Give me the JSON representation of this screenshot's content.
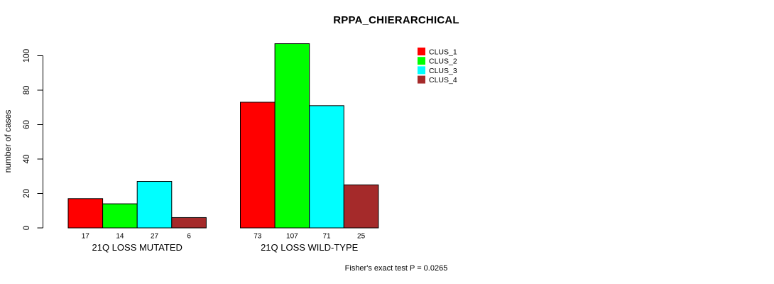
{
  "chart_data": {
    "type": "bar",
    "title": "RPPA_CHIERARCHICAL",
    "xlabel": "",
    "ylabel": "number of cases",
    "categories": [
      "21Q LOSS MUTATED",
      "21Q LOSS WILD-TYPE"
    ],
    "series": [
      {
        "name": "CLUS_1",
        "color": "#ff0000",
        "values": [
          17,
          73
        ]
      },
      {
        "name": "CLUS_2",
        "color": "#00ff00",
        "values": [
          14,
          107
        ]
      },
      {
        "name": "CLUS_3",
        "color": "#00ffff",
        "values": [
          27,
          71
        ]
      },
      {
        "name": "CLUS_4",
        "color": "#a52a2a",
        "values": [
          6,
          25
        ]
      }
    ],
    "bar_value_labels": [
      [
        "17",
        "14",
        "27",
        "6"
      ],
      [
        "73",
        "107",
        "71",
        "25"
      ]
    ],
    "ylim": [
      0,
      100
    ],
    "yticks": [
      0,
      20,
      40,
      60,
      80,
      100
    ],
    "grid": false,
    "legend_position": "top-right",
    "legend_entries": [
      "CLUS_1",
      "CLUS_2",
      "CLUS_3",
      "CLUS_4"
    ],
    "footnote": "Fisher's exact test P = 0.0265",
    "colors": {
      "axis": "#000000",
      "bar_border": "#000000",
      "background": "#ffffff",
      "text": "#000000"
    }
  }
}
